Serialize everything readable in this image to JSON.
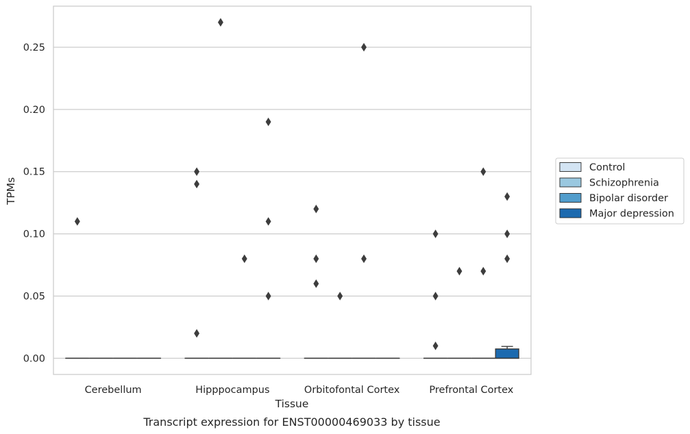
{
  "chart_data": {
    "type": "box",
    "xlabel": "Tissue",
    "ylabel": "TPMs",
    "caption": "Transcript expression for ENST00000469033 by tissue",
    "categories": [
      "Cerebellum",
      "Hipppocampus",
      "Orbitofontal Cortex",
      "Prefrontal Cortex"
    ],
    "ylim": [
      -0.013,
      0.283
    ],
    "yticks": [
      "0.00",
      "0.05",
      "0.10",
      "0.15",
      "0.20",
      "0.25"
    ],
    "ytick_values": [
      0,
      0.05,
      0.1,
      0.15,
      0.2,
      0.25
    ],
    "grid": "horizontal",
    "legend_position": "right",
    "series": [
      {
        "name": "Control",
        "color": "#d3e4f3",
        "boxes": [
          {
            "category": "Cerebellum",
            "q1": 0,
            "median": 0,
            "q3": 0,
            "whisker_low": 0,
            "whisker_high": 0,
            "outliers": [
              0.11
            ]
          },
          {
            "category": "Hipppocampus",
            "q1": 0,
            "median": 0,
            "q3": 0,
            "whisker_low": 0,
            "whisker_high": 0,
            "outliers": [
              0.15,
              0.14,
              0.02
            ]
          },
          {
            "category": "Orbitofontal Cortex",
            "q1": 0,
            "median": 0,
            "q3": 0,
            "whisker_low": 0,
            "whisker_high": 0,
            "outliers": [
              0.12,
              0.08,
              0.06
            ]
          },
          {
            "category": "Prefrontal Cortex",
            "q1": 0,
            "median": 0,
            "q3": 0,
            "whisker_low": 0,
            "whisker_high": 0,
            "outliers": [
              0.1,
              0.05,
              0.01
            ]
          }
        ]
      },
      {
        "name": "Schizophrenia",
        "color": "#9ac8e0",
        "boxes": [
          {
            "category": "Cerebellum",
            "q1": 0,
            "median": 0,
            "q3": 0,
            "whisker_low": 0,
            "whisker_high": 0,
            "outliers": []
          },
          {
            "category": "Hipppocampus",
            "q1": 0,
            "median": 0,
            "q3": 0,
            "whisker_low": 0,
            "whisker_high": 0,
            "outliers": [
              0.27
            ]
          },
          {
            "category": "Orbitofontal Cortex",
            "q1": 0,
            "median": 0,
            "q3": 0,
            "whisker_low": 0,
            "whisker_high": 0,
            "outliers": [
              0.05
            ]
          },
          {
            "category": "Prefrontal Cortex",
            "q1": 0,
            "median": 0,
            "q3": 0,
            "whisker_low": 0,
            "whisker_high": 0,
            "outliers": [
              0.07
            ]
          }
        ]
      },
      {
        "name": "Bipolar disorder",
        "color": "#529dcc",
        "boxes": [
          {
            "category": "Cerebellum",
            "q1": 0,
            "median": 0,
            "q3": 0,
            "whisker_low": 0,
            "whisker_high": 0,
            "outliers": []
          },
          {
            "category": "Hipppocampus",
            "q1": 0,
            "median": 0,
            "q3": 0,
            "whisker_low": 0,
            "whisker_high": 0,
            "outliers": [
              0.08
            ]
          },
          {
            "category": "Orbitofontal Cortex",
            "q1": 0,
            "median": 0,
            "q3": 0,
            "whisker_low": 0,
            "whisker_high": 0,
            "outliers": [
              0.25,
              0.08
            ]
          },
          {
            "category": "Prefrontal Cortex",
            "q1": 0,
            "median": 0,
            "q3": 0,
            "whisker_low": 0,
            "whisker_high": 0,
            "outliers": [
              0.15,
              0.07
            ]
          }
        ]
      },
      {
        "name": "Major depression",
        "color": "#1c6aaf",
        "boxes": [
          {
            "category": "Cerebellum",
            "q1": 0,
            "median": 0,
            "q3": 0,
            "whisker_low": 0,
            "whisker_high": 0,
            "outliers": []
          },
          {
            "category": "Hipppocampus",
            "q1": 0,
            "median": 0,
            "q3": 0,
            "whisker_low": 0,
            "whisker_high": 0,
            "outliers": [
              0.19,
              0.11,
              0.05
            ]
          },
          {
            "category": "Orbitofontal Cortex",
            "q1": 0,
            "median": 0,
            "q3": 0,
            "whisker_low": 0,
            "whisker_high": 0,
            "outliers": []
          },
          {
            "category": "Prefrontal Cortex",
            "q1": 0,
            "median": 0,
            "q3": 0.0075,
            "whisker_low": 0,
            "whisker_high": 0.0095,
            "outliers": [
              0.13,
              0.1,
              0.08
            ]
          }
        ]
      }
    ]
  }
}
